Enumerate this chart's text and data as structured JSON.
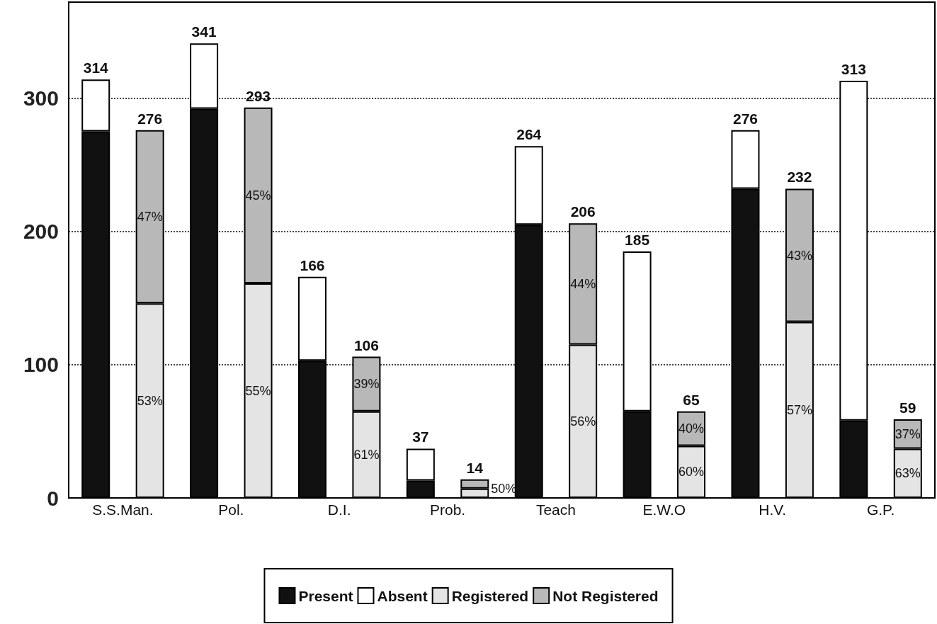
{
  "chart_data": {
    "type": "bar",
    "stacked": true,
    "categories": [
      "S.S.Man.",
      null,
      "Pol.",
      null,
      "D.I.",
      null,
      "Prob.",
      null,
      "Teach",
      null,
      "E.W.O",
      null,
      "H.V.",
      null,
      "G.P.",
      null
    ],
    "series": [
      {
        "name": "Present",
        "color": "#111111",
        "values": [
          275,
          null,
          292,
          null,
          103,
          null,
          13,
          null,
          205,
          null,
          65,
          null,
          232,
          null,
          58,
          null
        ]
      },
      {
        "name": "Absent",
        "color": "#ffffff",
        "values": [
          39,
          null,
          49,
          null,
          63,
          null,
          24,
          null,
          59,
          null,
          120,
          null,
          44,
          null,
          255,
          null
        ]
      },
      {
        "name": "Registered",
        "color": "#e4e4e4",
        "values": [
          null,
          146,
          null,
          161,
          null,
          65,
          null,
          7,
          null,
          115,
          null,
          39,
          null,
          132,
          null,
          37
        ]
      },
      {
        "name": "Not Registered",
        "color": "#b8b8b8",
        "values": [
          null,
          130,
          null,
          132,
          null,
          41,
          null,
          7,
          null,
          91,
          null,
          26,
          null,
          100,
          null,
          22
        ]
      }
    ],
    "totals": [
      "314",
      "276",
      "341",
      "293",
      "166",
      "106",
      "37",
      "14",
      "264",
      "206",
      "185",
      "65",
      "276",
      "232",
      "313",
      "59"
    ],
    "annotations": [
      "53%",
      "47%",
      "55%",
      "45%",
      "61%",
      "39%",
      "50%",
      "56%",
      "44%",
      "60%",
      "40%",
      "57%",
      "43%",
      "63%",
      "37%"
    ],
    "ylim": [
      0,
      372
    ],
    "yticks": [
      0,
      100,
      200,
      300
    ],
    "grid": "y",
    "legend": "bottom"
  }
}
